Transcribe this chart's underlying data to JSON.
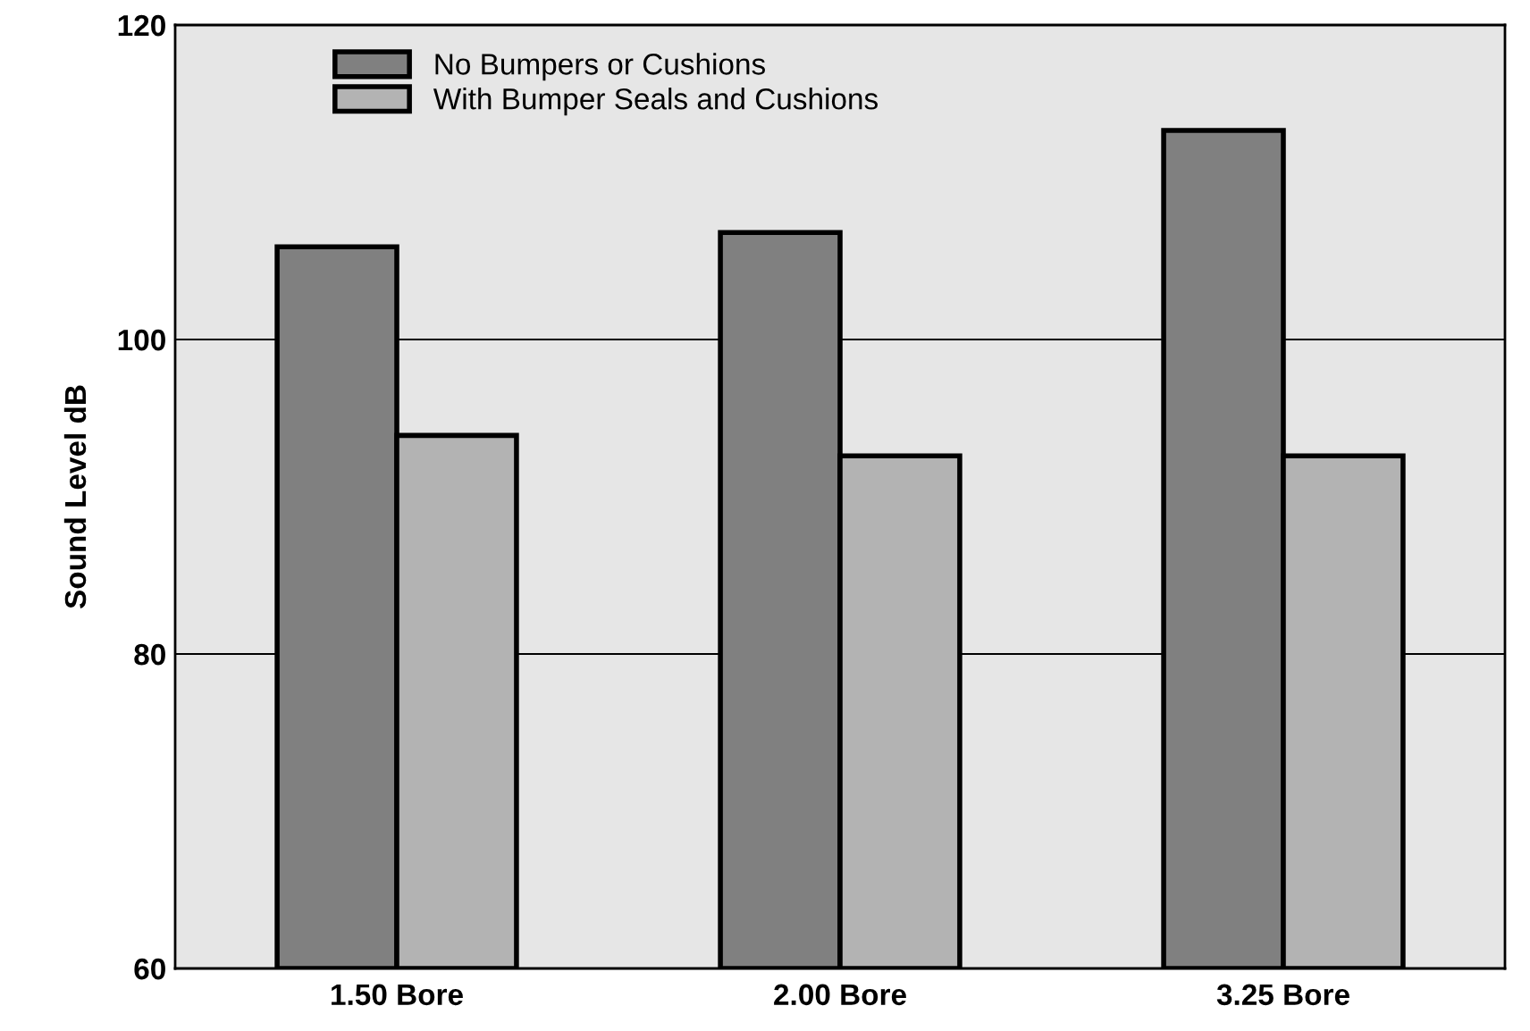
{
  "chart_data": {
    "type": "bar",
    "ylabel": "Sound Level dB",
    "categories": [
      "1.50 Bore",
      "2.00 Bore",
      "3.25 Bore"
    ],
    "series": [
      {
        "name": "No Bumpers or Cushions",
        "color": "#808080",
        "values": [
          105.9,
          106.8,
          113.3
        ]
      },
      {
        "name": "With Bumper Seals and Cushions",
        "color": "#b3b3b3",
        "values": [
          93.9,
          92.6,
          92.6
        ]
      }
    ],
    "ylim": [
      60,
      120
    ],
    "yticks": [
      60,
      80,
      100,
      120
    ],
    "grid": "y",
    "legend": "top left"
  }
}
